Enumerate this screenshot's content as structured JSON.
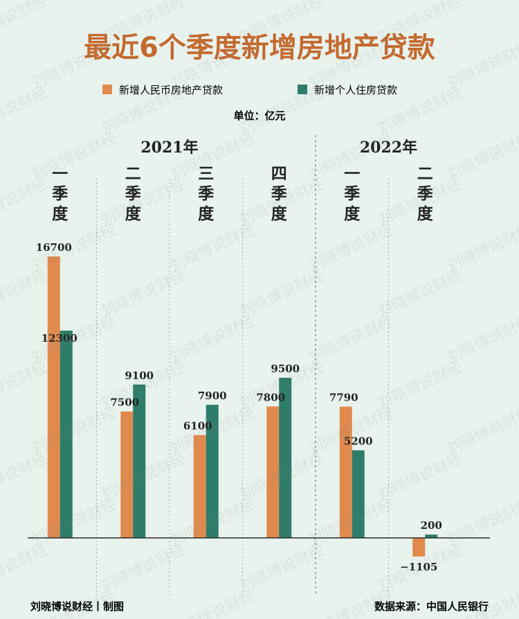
{
  "title": "最近6个季度新增房地产贷款",
  "legend": {
    "items": [
      {
        "label": "新增人民币房地产贷款",
        "color": "#e08a4e"
      },
      {
        "label": "新增个人住房贷款",
        "color": "#2e7d6a"
      }
    ],
    "placement": "top"
  },
  "unit": "单位：亿元",
  "footer": {
    "left": "刘晓博说财经丨制图",
    "right": "数据来源：中国人民银行"
  },
  "watermark_text": "刘晓博说财经",
  "colors": {
    "background": "#e9f3ee",
    "title": "#c46a2f",
    "series1": "#e08a4e",
    "series2": "#2e7d6a",
    "divider": "#8b8b8b",
    "baseline": "#2a2a2a"
  },
  "chart_data": {
    "type": "bar",
    "years": [
      {
        "label": "2021年",
        "quarters": 4
      },
      {
        "label": "2022年",
        "quarters": 2
      }
    ],
    "categories": [
      "一季度",
      "二季度",
      "三季度",
      "四季度",
      "一季度",
      "二季度"
    ],
    "series": [
      {
        "name": "新增人民币房地产贷款",
        "values": [
          16700,
          7500,
          6100,
          7800,
          7790,
          -1105
        ]
      },
      {
        "name": "新增个人住房贷款",
        "values": [
          12300,
          9100,
          7900,
          9500,
          5200,
          200
        ]
      }
    ],
    "ylim": [
      -1500,
      17000
    ],
    "grid": false
  }
}
